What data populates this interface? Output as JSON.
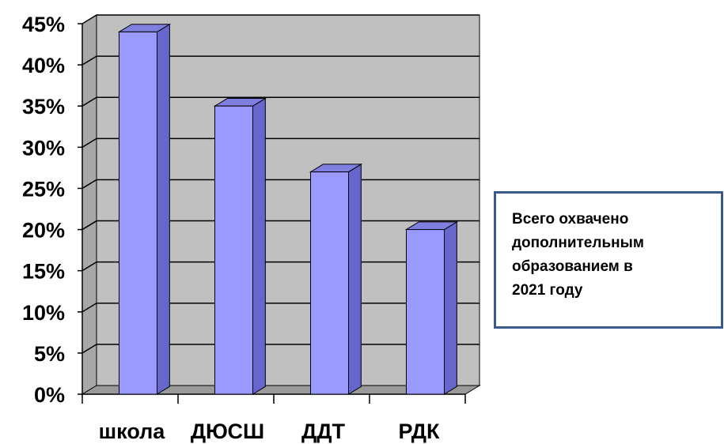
{
  "chart_data": {
    "type": "bar",
    "categories": [
      "школа",
      "ДЮСШ",
      "ДДТ",
      "РДК"
    ],
    "values": [
      44,
      35,
      27,
      20
    ],
    "ylim": [
      0,
      45
    ],
    "yticks": [
      "0%",
      "5%",
      "10%",
      "15%",
      "20%",
      "25%",
      "30%",
      "35%",
      "40%",
      "45%"
    ],
    "grid": true,
    "three_d": true,
    "bar_color": "#9999ff",
    "bar_side_color": "#6666cc",
    "bar_top_color": "#7f7fe0",
    "plot_background": "#c0c0c0",
    "annotation": "Всего охвачено\nдополнительным\nобразованием в\n2021 году"
  }
}
